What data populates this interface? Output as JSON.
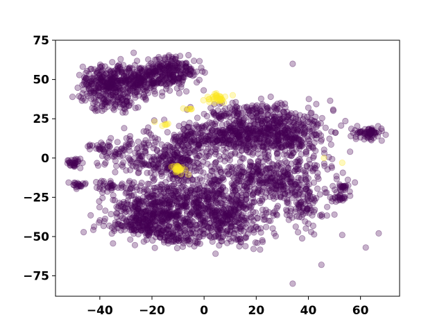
{
  "chart_data": {
    "type": "scatter",
    "title": "",
    "xlabel": "",
    "ylabel": "",
    "xlim": [
      -57,
      75
    ],
    "ylim": [
      -88,
      75
    ],
    "xticks": [
      -40,
      -20,
      0,
      20,
      40,
      60
    ],
    "yticks": [
      75,
      50,
      25,
      0,
      -25,
      -50,
      -75
    ],
    "xtick_labels": [
      "−40",
      "−20",
      "0",
      "20",
      "40",
      "60"
    ],
    "ytick_labels": [
      "75",
      "50",
      "25",
      "0",
      "−25",
      "−50",
      "−75"
    ],
    "grid": false,
    "legend": "none",
    "marker_alpha": 0.3,
    "colors": {
      "class_0": "#440154",
      "class_1": "#fde725"
    },
    "series": [
      {
        "class": 0,
        "clusters": [
          {
            "center": [
              -38,
              47
            ],
            "spread": [
              5,
              6
            ],
            "count": 260
          },
          {
            "center": [
              -22,
              50
            ],
            "spread": [
              7,
              5
            ],
            "count": 260
          },
          {
            "center": [
              -12,
              56
            ],
            "spread": [
              5,
              4
            ],
            "count": 160
          },
          {
            "center": [
              -33,
              35
            ],
            "spread": [
              5,
              3
            ],
            "count": 60
          },
          {
            "center": [
              12,
              14
            ],
            "spread": [
              12,
              6
            ],
            "count": 420
          },
          {
            "center": [
              30,
              17
            ],
            "spread": [
              9,
              8
            ],
            "count": 360
          },
          {
            "center": [
              25,
              -12
            ],
            "spread": [
              12,
              8
            ],
            "count": 380
          },
          {
            "center": [
              -5,
              -28
            ],
            "spread": [
              14,
              10
            ],
            "count": 560
          },
          {
            "center": [
              -20,
              -38
            ],
            "spread": [
              10,
              8
            ],
            "count": 300
          },
          {
            "center": [
              8,
              -40
            ],
            "spread": [
              8,
              7
            ],
            "count": 240
          },
          {
            "center": [
              -15,
              -5
            ],
            "spread": [
              6,
              5
            ],
            "count": 140
          },
          {
            "center": [
              -30,
              5
            ],
            "spread": [
              5,
              6
            ],
            "count": 80
          },
          {
            "center": [
              -8,
              5
            ],
            "spread": [
              6,
              6
            ],
            "count": 110
          },
          {
            "center": [
              38,
              -30
            ],
            "spread": [
              4,
              8
            ],
            "count": 90
          },
          {
            "center": [
              63,
              16
            ],
            "spread": [
              3,
              2
            ],
            "count": 70
          },
          {
            "center": [
              -50,
              -3
            ],
            "spread": [
              1.5,
              1.5
            ],
            "count": 30
          },
          {
            "center": [
              -48,
              -17
            ],
            "spread": [
              1.5,
              1
            ],
            "count": 20
          },
          {
            "center": [
              -40,
              7
            ],
            "spread": [
              2,
              1
            ],
            "count": 20
          },
          {
            "center": [
              52,
              -26
            ],
            "spread": [
              2,
              1.5
            ],
            "count": 25
          },
          {
            "center": [
              53,
              -18
            ],
            "spread": [
              1.5,
              1.5
            ],
            "count": 15
          },
          {
            "center": [
              -36,
              -18
            ],
            "spread": [
              3,
              2
            ],
            "count": 30
          },
          {
            "center": [
              -25,
              -42
            ],
            "spread": [
              4,
              3
            ],
            "count": 60
          },
          {
            "center": [
              15,
              30
            ],
            "spread": [
              10,
              3
            ],
            "count": 80
          },
          {
            "center": [
              -12,
              -50
            ],
            "spread": [
              6,
              3
            ],
            "count": 60
          }
        ],
        "outliers": [
          [
            34,
            60
          ],
          [
            34,
            -80
          ],
          [
            45,
            -68
          ],
          [
            53,
            -49
          ],
          [
            62,
            -57
          ],
          [
            67,
            -48
          ],
          [
            50,
            -36
          ],
          [
            47,
            -22
          ],
          [
            56,
            4
          ],
          [
            -27,
            67
          ],
          [
            -32,
            63
          ],
          [
            -15,
            64
          ]
        ]
      },
      {
        "class": 1,
        "clusters": [
          {
            "center": [
              5,
              38
            ],
            "spread": [
              2,
              1.5
            ],
            "count": 35
          },
          {
            "center": [
              -10,
              -7
            ],
            "spread": [
              1.5,
              1.5
            ],
            "count": 25
          },
          {
            "center": [
              -15,
              22
            ],
            "spread": [
              1,
              1
            ],
            "count": 5
          },
          {
            "center": [
              -5,
              32
            ],
            "spread": [
              1.5,
              1
            ],
            "count": 6
          }
        ],
        "outliers": [
          [
            11,
            40
          ],
          [
            53,
            -3
          ],
          [
            46,
            0
          ],
          [
            -19,
            23
          ]
        ]
      }
    ]
  }
}
